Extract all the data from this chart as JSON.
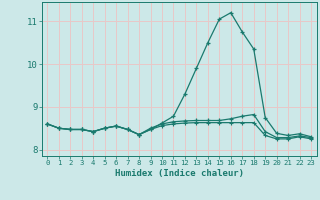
{
  "xlabel": "Humidex (Indice chaleur)",
  "x": [
    0,
    1,
    2,
    3,
    4,
    5,
    6,
    7,
    8,
    9,
    10,
    11,
    12,
    13,
    14,
    15,
    16,
    17,
    18,
    19,
    20,
    21,
    22,
    23
  ],
  "line1": [
    8.6,
    8.5,
    8.47,
    8.47,
    8.42,
    8.5,
    8.55,
    8.47,
    8.35,
    8.47,
    8.62,
    8.78,
    9.3,
    9.9,
    10.5,
    11.05,
    11.2,
    10.75,
    10.35,
    8.75,
    8.38,
    8.33,
    8.37,
    8.3
  ],
  "line2": [
    8.6,
    8.5,
    8.47,
    8.47,
    8.42,
    8.5,
    8.55,
    8.47,
    8.35,
    8.5,
    8.6,
    8.65,
    8.67,
    8.68,
    8.68,
    8.68,
    8.72,
    8.78,
    8.82,
    8.42,
    8.28,
    8.28,
    8.32,
    8.28
  ],
  "line3": [
    8.6,
    8.5,
    8.47,
    8.47,
    8.42,
    8.5,
    8.55,
    8.47,
    8.35,
    8.47,
    8.56,
    8.6,
    8.62,
    8.63,
    8.63,
    8.63,
    8.63,
    8.63,
    8.63,
    8.33,
    8.25,
    8.25,
    8.3,
    8.25
  ],
  "line_color": "#1a7a6e",
  "bg_color": "#cce8e8",
  "grid_color": "#e8c8c8",
  "ylim": [
    7.85,
    11.45
  ],
  "yticks": [
    8,
    9,
    10,
    11
  ],
  "xlim": [
    -0.5,
    23.5
  ]
}
